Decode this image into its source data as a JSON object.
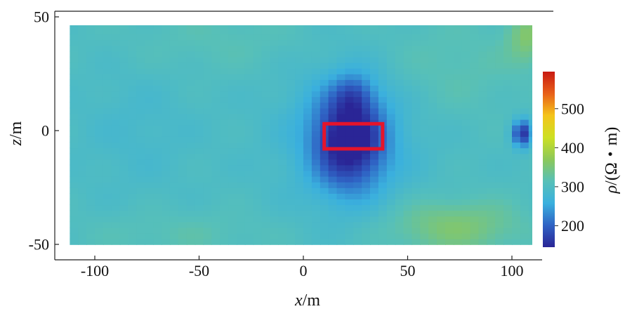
{
  "chart_data": {
    "type": "heatmap",
    "title": "",
    "xlabel": {
      "var": "x",
      "unit": "/m"
    },
    "ylabel": {
      "var": "z",
      "unit": "/m"
    },
    "xlim": [
      -112,
      110
    ],
    "ylim": [
      -50,
      50
    ],
    "x_ticks": [
      -100,
      -50,
      0,
      50,
      100
    ],
    "x_tick_labels": [
      "-100",
      "-50",
      "0",
      "50",
      "100"
    ],
    "y_ticks": [
      50,
      0,
      -50
    ],
    "y_tick_labels": [
      "50",
      "0",
      "-50"
    ],
    "grid": false,
    "colorbar": {
      "label": {
        "var": "ρ",
        "unit": "/(Ω・m)"
      },
      "range": [
        145,
        595
      ],
      "ticks": [
        200,
        300,
        400,
        500
      ],
      "tick_labels": [
        "200",
        "300",
        "400",
        "500"
      ],
      "colormap": [
        "#2a2596",
        "#2f62c4",
        "#3ab0de",
        "#57c0b8",
        "#8cc85a",
        "#cde022",
        "#f4c41a",
        "#e8601a",
        "#c81a12"
      ]
    },
    "field_description": "approximate resistivity field sampled from the image",
    "background_resistivity": 300,
    "anomalies": [
      {
        "label": "main low-resistivity anomaly",
        "x_range": [
          3,
          38
        ],
        "z_range": [
          -28,
          25
        ],
        "min_rho": 160
      },
      {
        "label": "right edge low-resistivity anomaly",
        "x_range": [
          97,
          110
        ],
        "z_range": [
          -8,
          5
        ],
        "min_rho": 170
      },
      {
        "label": "lower-right elevated zone",
        "x_range": [
          45,
          110
        ],
        "z_range": [
          -50,
          -20
        ],
        "max_rho": 360
      },
      {
        "label": "top-right elevated zone",
        "x_range": [
          95,
          110
        ],
        "z_range": [
          30,
          50
        ],
        "max_rho": 360
      }
    ],
    "annotations": [
      {
        "type": "rectangle",
        "color": "#e5142b",
        "x_range": [
          10,
          38
        ],
        "z_range": [
          -8,
          3
        ]
      }
    ]
  }
}
